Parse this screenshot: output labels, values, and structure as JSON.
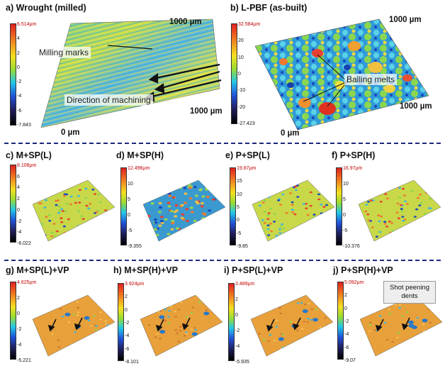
{
  "panels": {
    "a": {
      "title": "a) Wrought (milled)",
      "cbar": [
        "6.514µm",
        "4",
        "2",
        "0",
        "-2",
        "-4",
        "-6",
        "-7.843"
      ]
    },
    "b": {
      "title": "b) L-PBF (as-built)",
      "cbar": [
        "32.584µm",
        "20",
        "10",
        "0",
        "-10",
        "-20",
        "-27.423"
      ]
    },
    "c": {
      "title": "c) M+SP(L)",
      "cbar": [
        "8.108µm",
        "6",
        "4",
        "2",
        "0",
        "-2",
        "-4",
        "-6.022"
      ]
    },
    "d": {
      "title": "d) M+SP(H)",
      "cbar": [
        "12.496µm",
        "10",
        "5",
        "0",
        "-5",
        "-9.355"
      ]
    },
    "e": {
      "title": "e) P+SP(L)",
      "cbar": [
        "19.87µm",
        "15",
        "10",
        "5",
        "0",
        "-5",
        "-9.85"
      ]
    },
    "f": {
      "title": "f) P+SP(H)",
      "cbar": [
        "16.97µm",
        "10",
        "5",
        "0",
        "-5",
        "-10.376"
      ]
    },
    "g": {
      "title": "g) M+SP(L)+VP",
      "cbar": [
        "4.625µm",
        "2",
        "0",
        "-2",
        "-4",
        "-5.221"
      ]
    },
    "h": {
      "title": "h) M+SP(H)+VP",
      "cbar": [
        "3.924µm",
        "2",
        "0",
        "-2",
        "-4",
        "-6",
        "-8.101"
      ]
    },
    "i": {
      "title": "i) P+SP(L)+VP",
      "cbar": [
        "3.489µm",
        "2",
        "0",
        "-2",
        "-4",
        "-5.935"
      ]
    },
    "j": {
      "title": "j) P+SP(H)+VP",
      "cbar": [
        "5.092µm",
        "2",
        "0",
        "-2",
        "-4",
        "-6",
        "-9.07"
      ]
    }
  },
  "labels": {
    "milling_marks": "Milling marks",
    "direction": "Direction of machining",
    "balling": "Balling  melts",
    "shot_dents": "Shot peening dents",
    "axis_1000": "1000 µm",
    "axis_0": "0 µm"
  },
  "colors": {
    "separator": "#1c2a7a",
    "accent_red": "#c00000"
  }
}
